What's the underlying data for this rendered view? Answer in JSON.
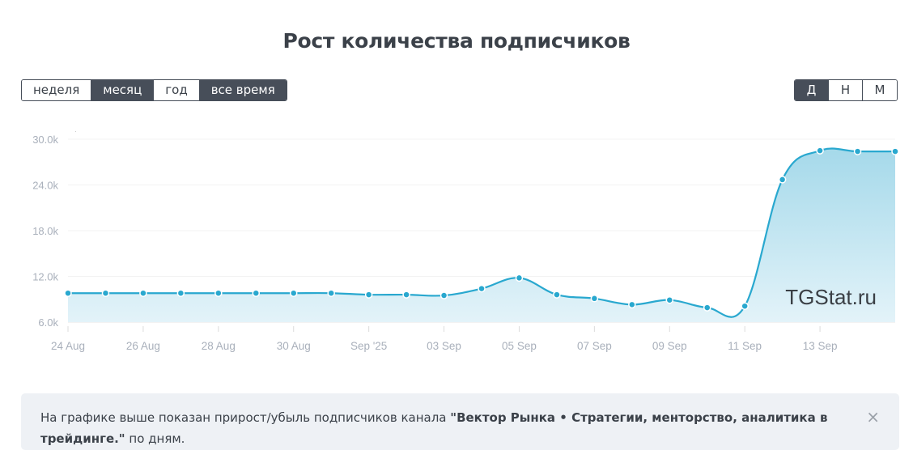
{
  "title": "Рост количества подписчиков",
  "period_buttons": [
    {
      "label": "неделя",
      "active": false
    },
    {
      "label": "месяц",
      "active": true
    },
    {
      "label": "год",
      "active": false
    },
    {
      "label": "все время",
      "active": true
    }
  ],
  "granularity_buttons": [
    {
      "label": "Д",
      "active": true
    },
    {
      "label": "Н",
      "active": false
    },
    {
      "label": "М",
      "active": false
    }
  ],
  "watermark": "TGStat.ru",
  "colors": {
    "line": "#29a8cf",
    "fill_top": "#a5d9ea",
    "fill_bottom": "#e3f3f9",
    "dark": "#474e59"
  },
  "note": {
    "prefix": "На графике выше показан прирост/убыль подписчиков канала ",
    "channel": "\"Вектор Рынка • Стратегии, менторство, аналитика в трейдинге.\"",
    "suffix": " по дням.",
    "close_icon": "×"
  },
  "chart_data": {
    "type": "area",
    "title": "Рост количества подписчиков",
    "xlabel": "",
    "ylabel": "",
    "x": [
      "24 Aug",
      "25 Aug",
      "26 Aug",
      "27 Aug",
      "28 Aug",
      "29 Aug",
      "30 Aug",
      "31 Aug",
      "01 Sep",
      "02 Sep",
      "03 Sep",
      "04 Sep",
      "05 Sep",
      "06 Sep",
      "07 Sep",
      "08 Sep",
      "09 Sep",
      "10 Sep",
      "11 Sep",
      "12 Sep",
      "13 Sep",
      "14 Sep",
      "15 Sep"
    ],
    "series": [
      {
        "name": "Подписчики",
        "values": [
          9800,
          9800,
          9800,
          9800,
          9800,
          9800,
          9800,
          9800,
          9600,
          9600,
          9500,
          10400,
          11800,
          9600,
          9100,
          8300,
          8900,
          7900,
          8100,
          24700,
          28500,
          28400,
          28400
        ]
      }
    ],
    "x_tick_labels": [
      "24 Aug",
      "26 Aug",
      "28 Aug",
      "30 Aug",
      "Sep '25",
      "03 Sep",
      "05 Sep",
      "07 Sep",
      "09 Sep",
      "11 Sep",
      "13 Sep"
    ],
    "y_tick_labels": [
      "6.0k",
      "12.0k",
      "18.0k",
      "24.0k",
      "30.0k"
    ],
    "ylim": [
      6000,
      30000
    ],
    "grid": true,
    "legend": "none"
  }
}
